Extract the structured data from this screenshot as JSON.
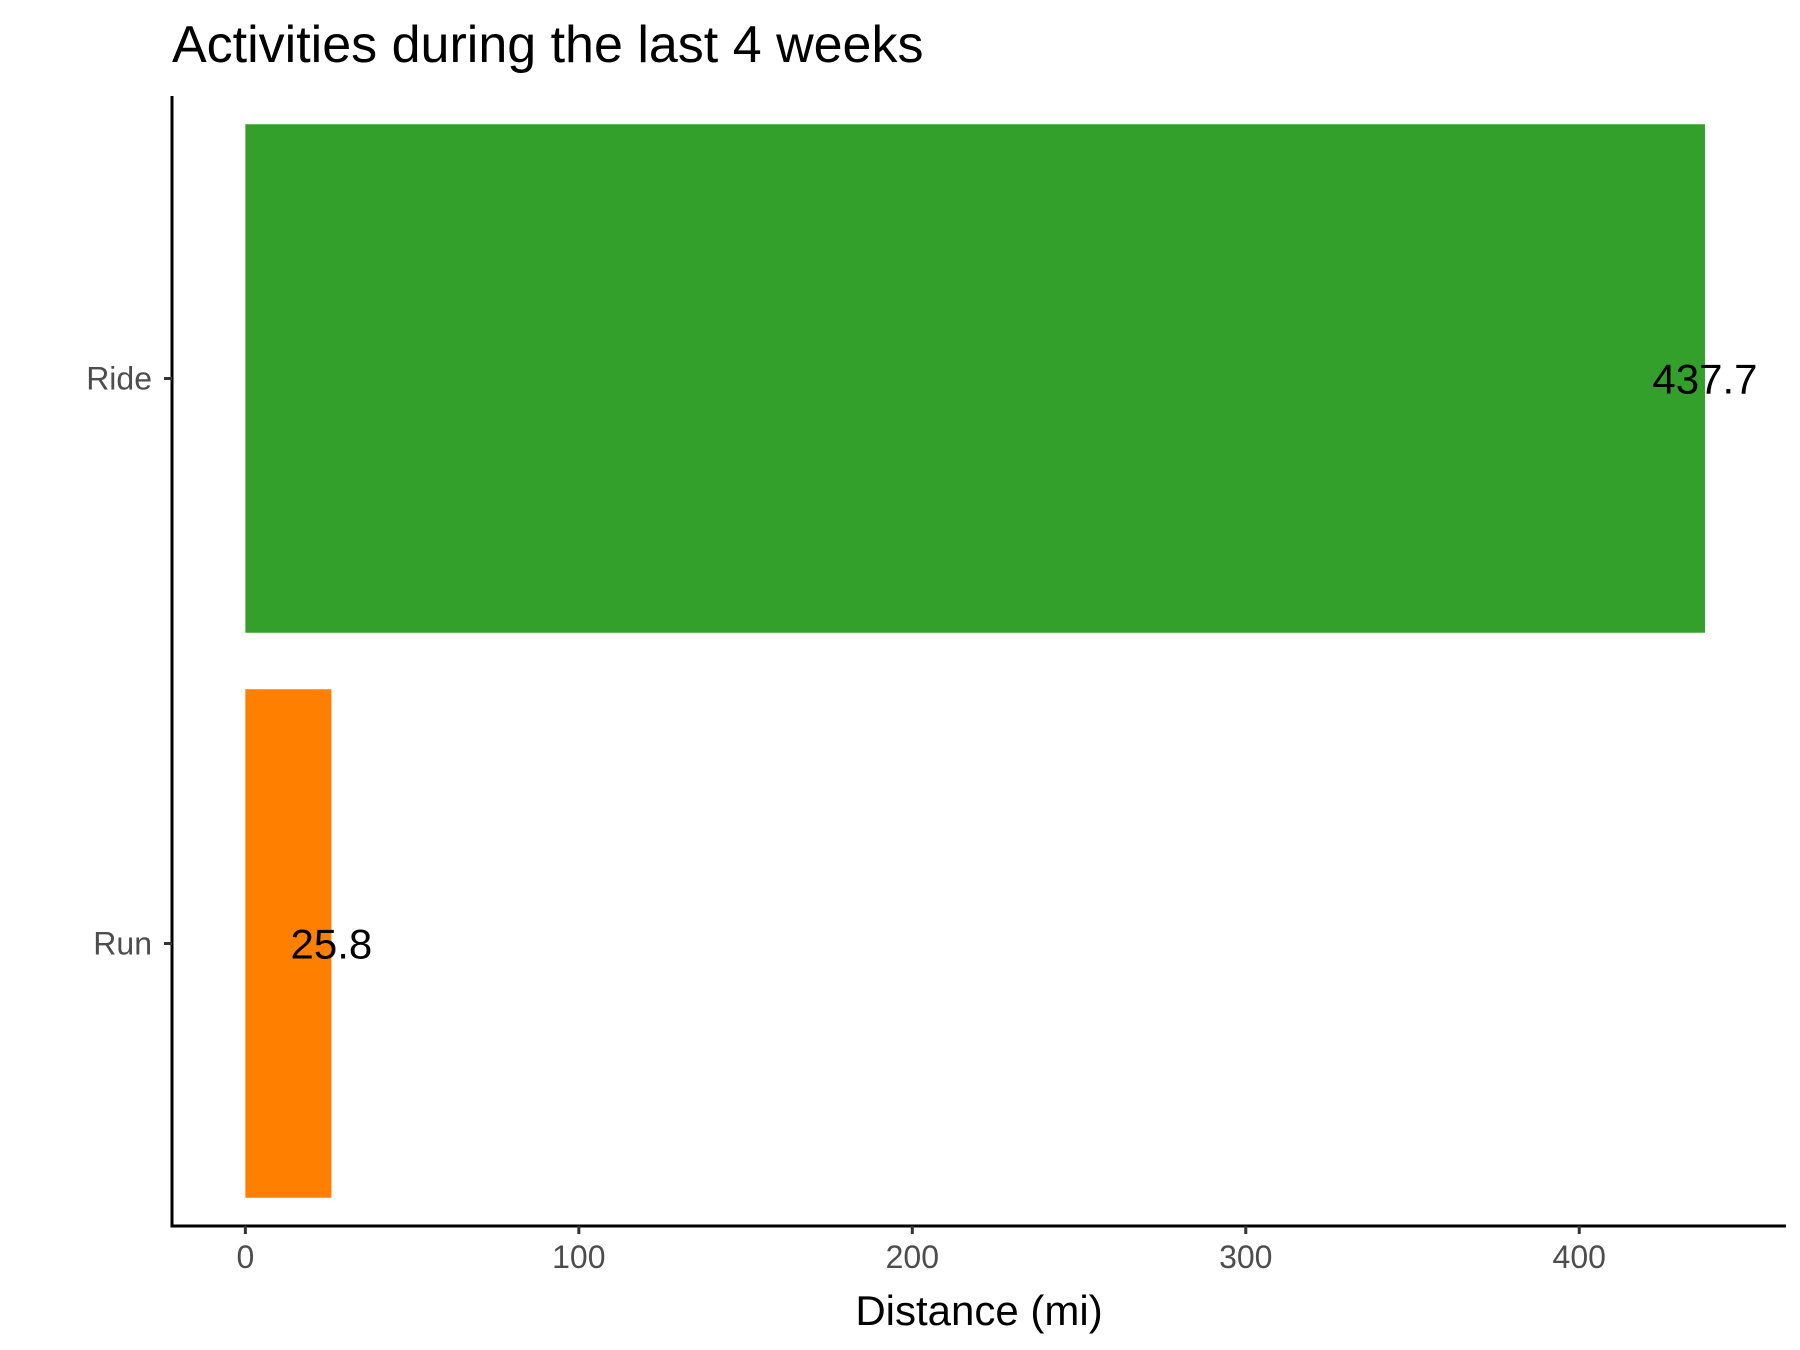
{
  "chart_data": {
    "type": "bar",
    "orientation": "horizontal",
    "title": "Activities during the last 4 weeks",
    "xlabel": "Distance (mi)",
    "ylabel": "",
    "categories": [
      "Ride",
      "Run"
    ],
    "values": [
      437.7,
      25.8
    ],
    "value_labels": [
      "437.7",
      "25.8"
    ],
    "colors": [
      "#33a02c",
      "#ff7f00"
    ],
    "xlim": [
      -22,
      462
    ],
    "xticks": [
      0,
      100,
      200,
      300,
      400
    ],
    "xtick_labels": [
      "0",
      "100",
      "200",
      "300",
      "400"
    ],
    "grid": false,
    "legend": "none"
  }
}
